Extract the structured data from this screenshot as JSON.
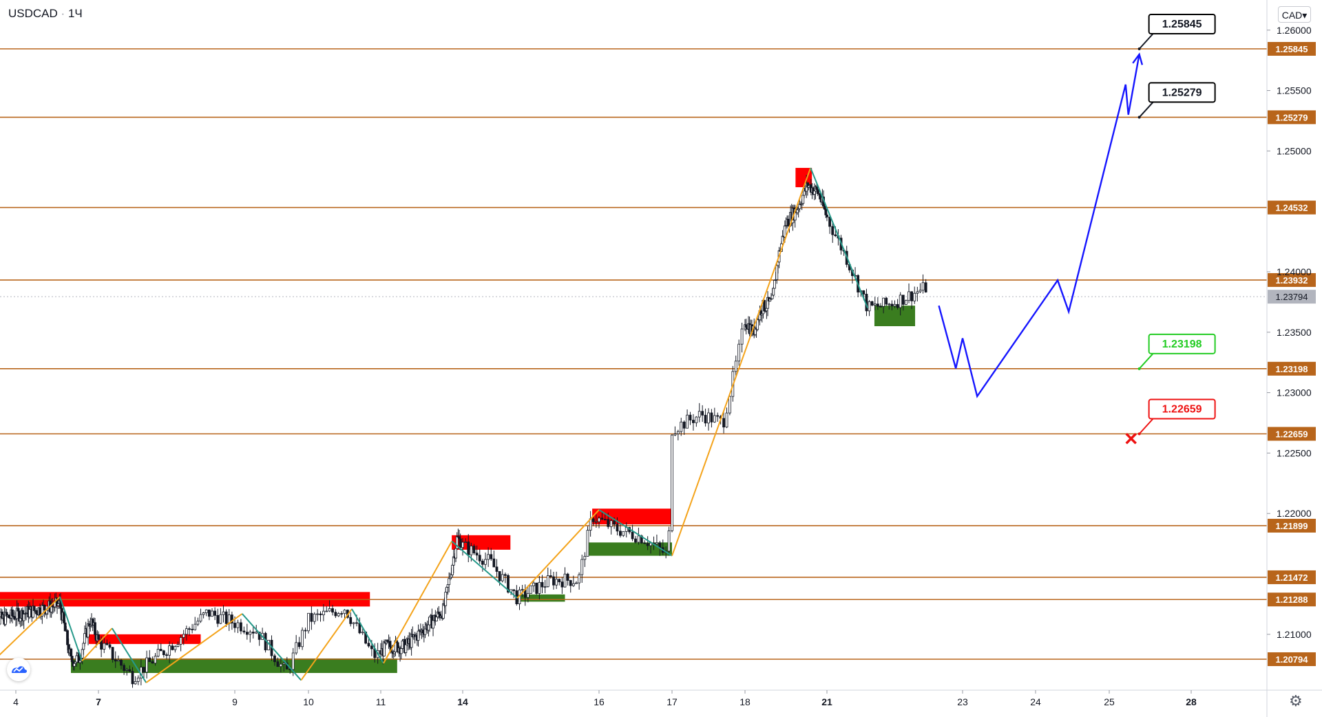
{
  "header": {
    "symbol": "USDCAD",
    "separator": "·",
    "interval": "1Ч",
    "currency": "CAD",
    "currency_caret": "▾"
  },
  "icons": {
    "logo": "tradingview-cloud-icon",
    "settings": "gear-icon"
  },
  "colors": {
    "level": "#b8651b",
    "level_badge": "#b8651b",
    "zigzag_up": "#f4a31a",
    "zigzag_down": "#26998a",
    "resistance": "#ff0000",
    "support": "#3a7d1f",
    "forecast": "#1515ff",
    "candle": "#131722",
    "target_border": "#000000",
    "entry_border": "#22cc22",
    "stop_border": "#ee1111"
  },
  "chart_data": {
    "type": "candlestick",
    "symbol": "USDCAD",
    "timeframe": "1Ч",
    "ylim": [
      1.206,
      1.2615
    ],
    "price_ticks": [
      "1.26000",
      "1.25500",
      "1.25000",
      "1.24000",
      "1.23500",
      "1.23000",
      "1.22500",
      "1.22000",
      "1.21000"
    ],
    "x_ticks": [
      "4",
      "7",
      "9",
      "10",
      "11",
      "14",
      "16",
      "17",
      "18",
      "21",
      "23",
      "24",
      "25",
      "28"
    ],
    "x_ticks_bold": [
      "7",
      "14",
      "21",
      "28"
    ],
    "levels": [
      1.25845,
      1.25279,
      1.24532,
      1.23932,
      1.23198,
      1.22659,
      1.21899,
      1.21472,
      1.21288,
      1.20794
    ],
    "level_labels": [
      "1.25845",
      "1.25279",
      "1.24532",
      "1.23932",
      "1.23198",
      "1.22659",
      "1.21899",
      "1.21472",
      "1.21288",
      "1.20794"
    ],
    "current_price": {
      "value": 1.23794,
      "label": "1.23794"
    },
    "price_path": [
      {
        "x": 3.0,
        "y": 1.211
      },
      {
        "x": 5.6,
        "y": 1.2125
      },
      {
        "x": 6.0,
        "y": 1.2078
      },
      {
        "x": 6.3,
        "y": 1.208
      },
      {
        "x": 6.7,
        "y": 1.2112
      },
      {
        "x": 7.5,
        "y": 1.2065
      },
      {
        "x": 8.0,
        "y": 1.2088
      },
      {
        "x": 8.6,
        "y": 1.2118
      },
      {
        "x": 9.3,
        "y": 1.2103
      },
      {
        "x": 9.7,
        "y": 1.2068
      },
      {
        "x": 10.0,
        "y": 1.2112
      },
      {
        "x": 10.5,
        "y": 1.2122
      },
      {
        "x": 10.9,
        "y": 1.2082
      },
      {
        "x": 11.2,
        "y": 1.209
      },
      {
        "x": 11.9,
        "y": 1.209
      },
      {
        "x": 13.3,
        "y": 1.212
      },
      {
        "x": 13.8,
        "y": 1.218
      },
      {
        "x": 14.4,
        "y": 1.216
      },
      {
        "x": 14.8,
        "y": 1.213
      },
      {
        "x": 15.3,
        "y": 1.2145
      },
      {
        "x": 15.7,
        "y": 1.2145
      },
      {
        "x": 15.9,
        "y": 1.2198
      },
      {
        "x": 16.2,
        "y": 1.2188
      },
      {
        "x": 16.6,
        "y": 1.218
      },
      {
        "x": 16.95,
        "y": 1.2165
      },
      {
        "x": 17.0,
        "y": 1.227
      },
      {
        "x": 17.4,
        "y": 1.2282
      },
      {
        "x": 17.7,
        "y": 1.2275
      },
      {
        "x": 17.9,
        "y": 1.233
      },
      {
        "x": 18.0,
        "y": 1.236
      },
      {
        "x": 18.3,
        "y": 1.235
      },
      {
        "x": 18.6,
        "y": 1.237
      },
      {
        "x": 19.0,
        "y": 1.2375
      },
      {
        "x": 19.2,
        "y": 1.241
      },
      {
        "x": 19.5,
        "y": 1.244
      },
      {
        "x": 19.9,
        "y": 1.2452
      },
      {
        "x": 20.3,
        "y": 1.2472
      },
      {
        "x": 20.7,
        "y": 1.2465
      },
      {
        "x": 21.0,
        "y": 1.2445
      },
      {
        "x": 21.3,
        "y": 1.241
      },
      {
        "x": 21.6,
        "y": 1.237
      },
      {
        "x": 21.9,
        "y": 1.2373
      },
      {
        "x": 22.2,
        "y": 1.238
      },
      {
        "x": 22.5,
        "y": 1.2388
      }
    ],
    "zigzag": [
      {
        "x": 3.0,
        "y": 1.2074
      },
      {
        "x": 5.6,
        "y": 1.2131
      },
      {
        "x": 6.4,
        "y": 1.2078
      },
      {
        "x": 7.2,
        "y": 1.2105
      },
      {
        "x": 7.7,
        "y": 1.206
      },
      {
        "x": 9.1,
        "y": 1.2117
      },
      {
        "x": 9.9,
        "y": 1.2062
      },
      {
        "x": 10.6,
        "y": 1.2121
      },
      {
        "x": 11.1,
        "y": 1.2076
      },
      {
        "x": 13.6,
        "y": 1.2177
      },
      {
        "x": 14.8,
        "y": 1.213
      },
      {
        "x": 16.0,
        "y": 1.2203
      },
      {
        "x": 17.0,
        "y": 1.2165
      },
      {
        "x": 20.4,
        "y": 1.2486
      },
      {
        "x": 21.6,
        "y": 1.237
      }
    ],
    "resistance_zones": [
      {
        "x0": 3.05,
        "x1": 10.85,
        "y0": 1.2123,
        "y1": 1.2135
      },
      {
        "x0": 6.65,
        "x1": 8.5,
        "y0": 1.2092,
        "y1": 1.21
      },
      {
        "x0": 13.6,
        "x1": 14.7,
        "y0": 1.217,
        "y1": 1.2182
      },
      {
        "x0": 15.9,
        "x1": 17.0,
        "y0": 1.2191,
        "y1": 1.2204
      },
      {
        "x0": 19.85,
        "x1": 20.45,
        "y0": 1.247,
        "y1": 1.2486
      }
    ],
    "support_zones": [
      {
        "x0": 6.0,
        "x1": 11.6,
        "y0": 1.2068,
        "y1": 1.208
      },
      {
        "x0": 14.8,
        "x1": 15.5,
        "y0": 1.2127,
        "y1": 1.2133
      },
      {
        "x0": 15.85,
        "x1": 17.0,
        "y0": 1.2165,
        "y1": 1.2176
      },
      {
        "x0": 21.7,
        "x1": 22.3,
        "y0": 1.2355,
        "y1": 1.2372
      }
    ],
    "forecast": [
      {
        "x": 22.65,
        "y": 1.2372
      },
      {
        "x": 22.9,
        "y": 1.232
      },
      {
        "x": 23.0,
        "y": 1.2345
      },
      {
        "x": 23.2,
        "y": 1.2297
      },
      {
        "x": 24.3,
        "y": 1.2393
      },
      {
        "x": 24.45,
        "y": 1.2367
      },
      {
        "x": 25.6,
        "y": 1.2555
      },
      {
        "x": 25.7,
        "y": 1.253
      },
      {
        "x": 26.1,
        "y": 1.258
      }
    ],
    "callouts": [
      {
        "label": "1.25845",
        "price": 1.25845,
        "kind": "target"
      },
      {
        "label": "1.25279",
        "price": 1.25279,
        "kind": "target"
      },
      {
        "label": "1.23198",
        "price": 1.23198,
        "kind": "entry"
      },
      {
        "label": "1.22659",
        "price": 1.22659,
        "kind": "stop"
      }
    ],
    "stop_marker": {
      "x": 25.8,
      "y": 1.2262
    }
  }
}
